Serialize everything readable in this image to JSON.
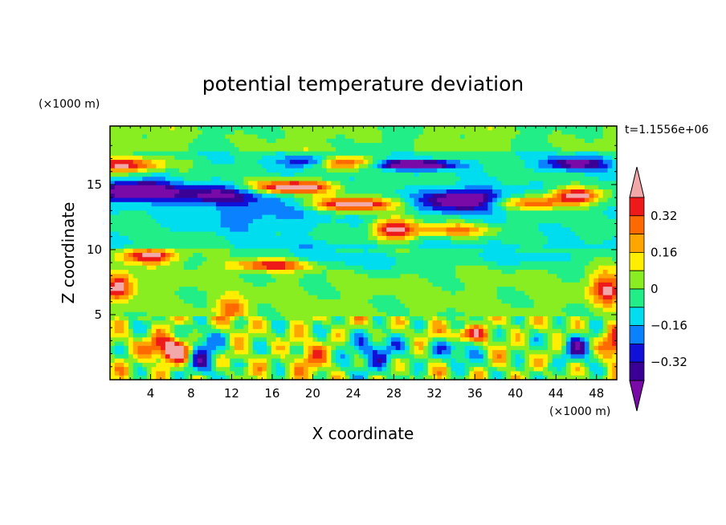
{
  "chart_data": {
    "type": "heatmap",
    "title": "potential temperature deviation",
    "xlabel": "X coordinate",
    "ylabel": "Z coordinate",
    "x_unit": "(×1000 m)",
    "y_unit": "(×1000 m)",
    "time_label": "t=1.1556e+06",
    "xlim": [
      0,
      50
    ],
    "ylim": [
      0,
      19.5
    ],
    "x_ticks": [
      4,
      8,
      12,
      16,
      20,
      24,
      28,
      32,
      36,
      40,
      44,
      48
    ],
    "y_ticks": [
      5,
      10,
      15
    ],
    "x_tick_labels": [
      "4",
      "8",
      "12",
      "16",
      "20",
      "24",
      "28",
      "32",
      "36",
      "40",
      "44",
      "48"
    ],
    "y_tick_labels": [
      "5",
      "10",
      "15"
    ],
    "colorbar": {
      "levels": [
        -0.4,
        -0.32,
        -0.24,
        -0.16,
        -0.08,
        0,
        0.08,
        0.16,
        0.24,
        0.32,
        0.4
      ],
      "labels": [
        "0.32",
        "0.16",
        "0",
        "−0.16",
        "−0.32"
      ],
      "label_values": [
        0.32,
        0.16,
        0,
        -0.16,
        -0.32
      ],
      "colors": [
        "#7a0aa8",
        "#3a0096",
        "#1010d8",
        "#0a82ff",
        "#00ddee",
        "#22ee88",
        "#88ee22",
        "#ffee00",
        "#ffa500",
        "#ff6a00",
        "#ee1a1a",
        "#f2a8a8"
      ],
      "extend": "both"
    }
  }
}
